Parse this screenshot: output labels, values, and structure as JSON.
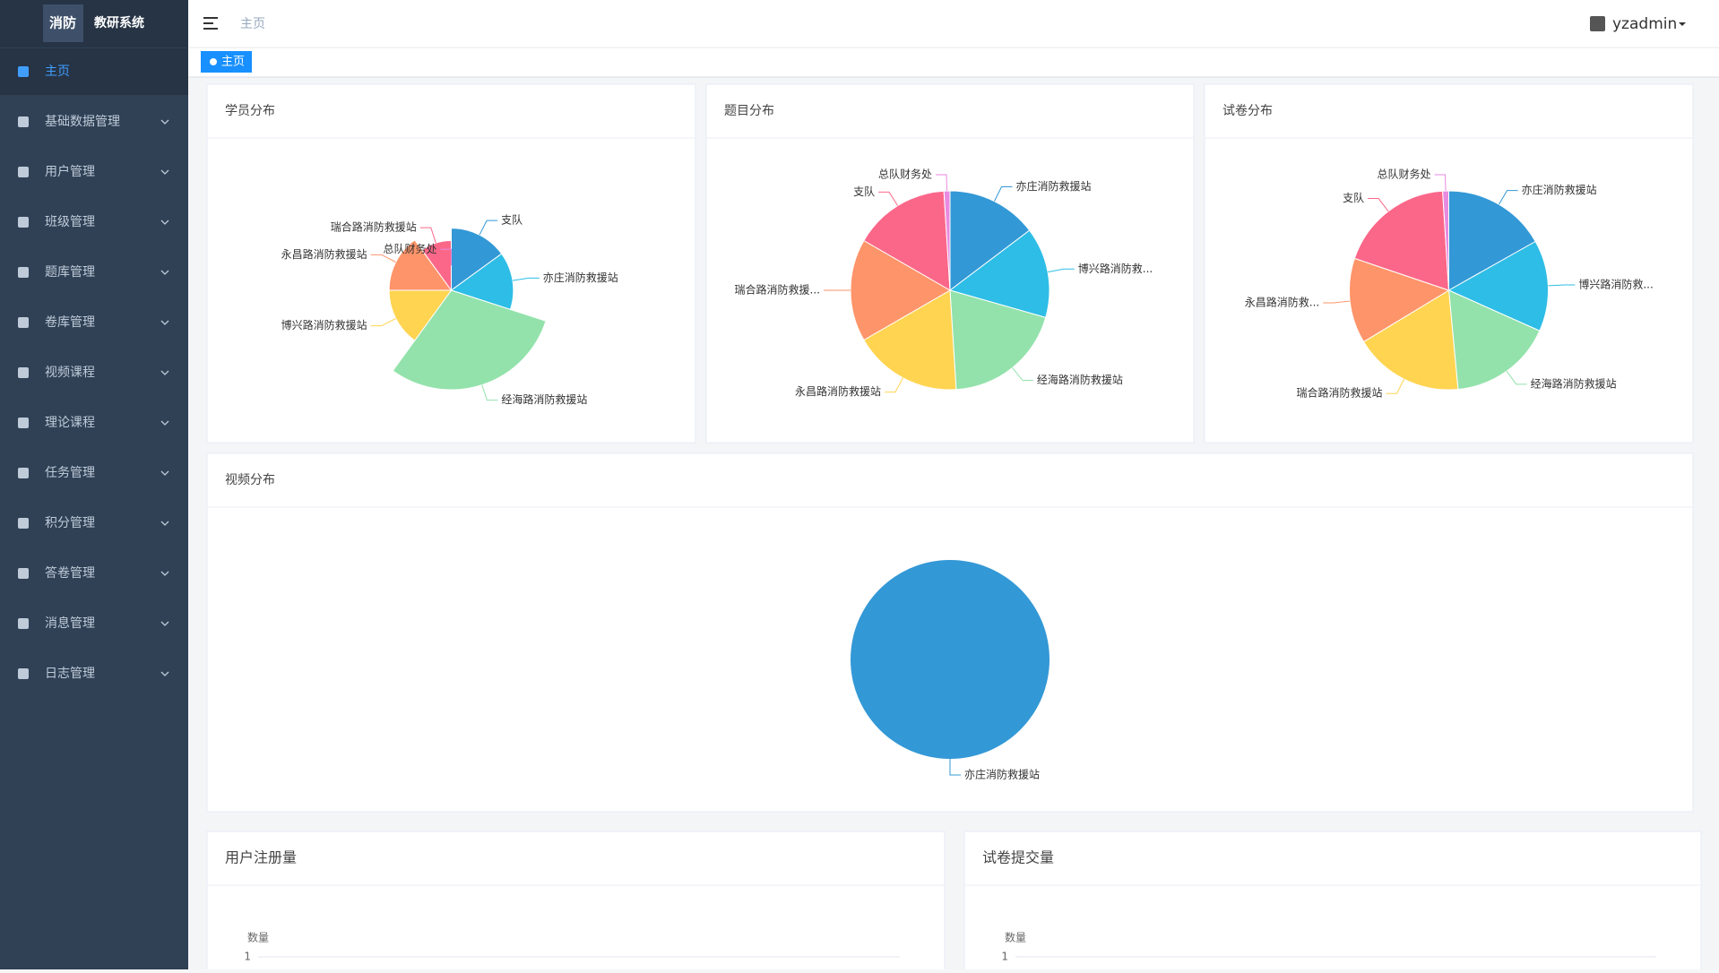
{
  "sidebar": {
    "logo": [
      "消防",
      "教研系统"
    ],
    "menu": [
      "主页",
      "基础数据管理",
      "用户管理",
      "班级管理",
      "题库管理",
      "卷库管理",
      "视频课程",
      "理论课程",
      "任务管理",
      "积分管理",
      "答卷管理",
      "消息管理",
      "日志管理"
    ]
  },
  "header": {
    "breadcrumb": "主页",
    "user": "yzadmin",
    "tag": "主页"
  },
  "chart_data": [
    {
      "type": "pie",
      "rose": true,
      "title": "学员分布",
      "categories": [
        "支队",
        "亦庄消防救援站",
        "经海路消防救援站",
        "博兴路消防救援站",
        "永昌路消防救援站",
        "瑞合路消防救援站",
        "总队财务处"
      ],
      "values": [
        3,
        3,
        6,
        3,
        3,
        2,
        0
      ],
      "colors": [
        "#3398d6",
        "#2ebde6",
        "#93e2ab",
        "#ffd451",
        "#fe9469",
        "#fb6789",
        "#e88ae0"
      ]
    },
    {
      "type": "pie",
      "title": "题目分布",
      "categories": [
        "亦庄消防救援站",
        "博兴路消防救...",
        "经海路消防救援站",
        "永昌路消防救援站",
        "瑞合路消防救援...",
        "支队",
        "总队财务处"
      ],
      "values": [
        15,
        15,
        20,
        18,
        17,
        16,
        1
      ],
      "colors": [
        "#3398d6",
        "#2ebde6",
        "#93e2ab",
        "#ffd451",
        "#fe9469",
        "#fb6789",
        "#e88ae0"
      ]
    },
    {
      "type": "pie",
      "title": "试卷分布",
      "categories": [
        "亦庄消防救援站",
        "博兴路消防救...",
        "经海路消防救援站",
        "瑞合路消防救援站",
        "永昌路消防救...",
        "支队",
        "总队财务处"
      ],
      "values": [
        17,
        15,
        17,
        18,
        14,
        19,
        1
      ],
      "colors": [
        "#3398d6",
        "#2ebde6",
        "#93e2ab",
        "#ffd451",
        "#fe9469",
        "#fb6789",
        "#e88ae0"
      ]
    },
    {
      "type": "pie",
      "title": "视频分布",
      "categories": [
        "亦庄消防救援站"
      ],
      "values": [
        1
      ],
      "colors": [
        "#3398d6"
      ]
    },
    {
      "type": "line",
      "title": "用户注册量",
      "y_label": "数量",
      "yticks": [
        1
      ]
    },
    {
      "type": "line",
      "title": "试卷提交量",
      "y_label": "数量",
      "yticks": [
        1
      ]
    }
  ]
}
